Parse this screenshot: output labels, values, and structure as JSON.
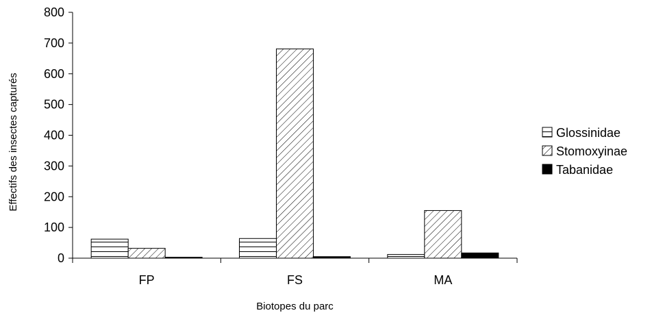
{
  "chart_data": {
    "type": "bar",
    "title": "",
    "xlabel": "Biotopes du parc",
    "ylabel": "Effectifs des insectes capturés",
    "categories": [
      "FP",
      "FS",
      "MA"
    ],
    "series": [
      {
        "name": "Glossinidae",
        "values": [
          62,
          64,
          12
        ],
        "pattern": "horizontal-lines"
      },
      {
        "name": "Stomoxyinae",
        "values": [
          32,
          681,
          155
        ],
        "pattern": "diagonal-lines"
      },
      {
        "name": "Tabanidae",
        "values": [
          3,
          5,
          17
        ],
        "pattern": "solid-black"
      }
    ],
    "ylim": [
      0,
      800
    ],
    "yticks": [
      "0",
      "100",
      "200",
      "300",
      "400",
      "500",
      "600",
      "700",
      "800"
    ],
    "grid": false,
    "legend_position": "right"
  }
}
